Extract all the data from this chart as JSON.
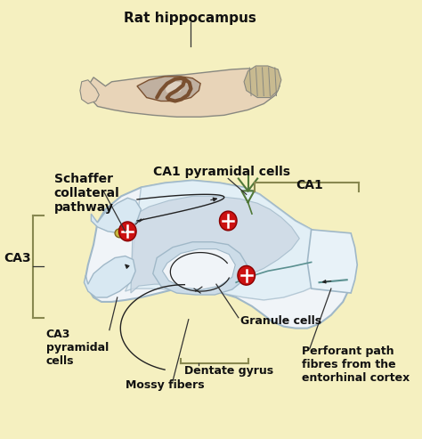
{
  "background_color": "#f5f0c0",
  "labels": {
    "rat_hippocampus": "Rat hippocampus",
    "schaffer": "Schaffer\ncollateral\npathway",
    "ca1_pyramidal": "CA1 pyramidal cells",
    "ca1": "CA1",
    "ca3": "CA3",
    "ca3_pyramidal": "CA3\npyramidal\ncells",
    "granule_cells": "Granule cells",
    "dentate_gyrus": "Dentate gyrus",
    "mossy_fibers": "Mossy fibers",
    "perforant": "Perforant path\nfibres from the\nentorhinal cortex"
  },
  "colors": {
    "outline": "#888880",
    "brain_skin": "#e8d4b8",
    "brain_dark": "#c0a080",
    "hipp_brown": "#7a5030",
    "hipp_light": "#c8b8a0",
    "slice_white": "#f0f4f8",
    "slice_blue": "#ccd8e0",
    "slice_edge": "#a0b8c8",
    "ca_inner": "#e8eef4",
    "dg_fill": "#e0ecf4",
    "ca3_lobe": "#dce8f0",
    "teal_fiber": "#5a9090",
    "neuron_red": "#cc1111",
    "neuron_dark": "#880000",
    "gold_cell": "#c8b840",
    "green_dendrite": "#507838",
    "axon_black": "#222222",
    "bracket_olive": "#888850",
    "label_color": "#111111",
    "annot_line": "#333333"
  },
  "figsize": [
    4.74,
    4.93
  ],
  "dpi": 100
}
